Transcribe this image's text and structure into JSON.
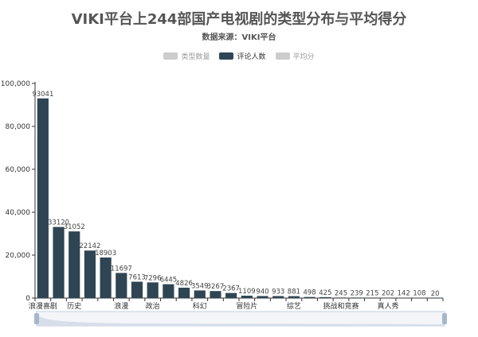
{
  "title": "VIKI平台上244部国产电视剧的类型分布与平均得分",
  "subtitle": "数据来源：VIKI平台",
  "legend": [
    {
      "label": "类型数量",
      "active": false
    },
    {
      "label": "评论人数",
      "active": true
    },
    {
      "label": "平均分",
      "active": false
    }
  ],
  "colors": {
    "bar": "#2f4554",
    "axis": "#333333",
    "grid": "#e8e8e8",
    "zoom_fill": "#d6deea",
    "zoom_border": "#c5cfdc"
  },
  "chart_data": {
    "type": "bar",
    "series": [
      {
        "name": "评论人数",
        "values": [
          93041,
          33120,
          31052,
          22142,
          18903,
          11697,
          7613,
          7296,
          6445,
          4826,
          3549,
          3267,
          2367,
          1109,
          940,
          933,
          881,
          498,
          425,
          245,
          239,
          215,
          202,
          142,
          108,
          20
        ]
      }
    ],
    "x_tick_labels": [
      "浪漫喜剧",
      "",
      "历史",
      "",
      "",
      "浪漫",
      "",
      "政治",
      "",
      "",
      "科幻",
      "",
      "",
      "冒险片",
      "",
      "",
      "综艺",
      "",
      "",
      "挑战和竞赛",
      "",
      "",
      "真人秀",
      "",
      "",
      ""
    ],
    "data_labels": [
      "93041",
      "33120",
      "31052",
      "22142",
      "18903",
      "11697",
      "7613",
      "7296",
      "6445",
      "4826",
      "3549",
      "3267",
      "2367",
      "1109",
      "940",
      "933",
      "881",
      "498",
      "425",
      "245",
      "239",
      "215",
      "202",
      "142",
      "108",
      "20"
    ],
    "y_ticks": [
      "0",
      "20,000",
      "40,000",
      "60,000",
      "80,000",
      "100,000"
    ],
    "ylim": [
      0,
      100000
    ],
    "grid": false,
    "legend_position": "top-center",
    "datazoom": "bottom-slider"
  }
}
